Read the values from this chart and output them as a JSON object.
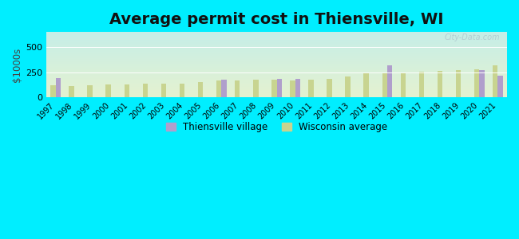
{
  "title": "Average permit cost in Thiensville, WI",
  "ylabel": "$1000s",
  "years": [
    1997,
    1998,
    1999,
    2000,
    2001,
    2002,
    2003,
    2004,
    2005,
    2006,
    2007,
    2008,
    2009,
    2010,
    2011,
    2012,
    2013,
    2014,
    2015,
    2016,
    2017,
    2018,
    2019,
    2020,
    2021
  ],
  "thiensville": [
    195,
    null,
    null,
    null,
    null,
    null,
    null,
    null,
    null,
    175,
    null,
    null,
    185,
    180,
    null,
    null,
    null,
    null,
    320,
    null,
    null,
    null,
    null,
    270,
    215
  ],
  "wisconsin": [
    120,
    115,
    120,
    130,
    125,
    135,
    135,
    140,
    155,
    165,
    165,
    175,
    175,
    170,
    175,
    180,
    210,
    235,
    240,
    250,
    255,
    260,
    270,
    275,
    320
  ],
  "thiensville_color": "#b09fcc",
  "wisconsin_color": "#c8d490",
  "outer_bg": "#00eeff",
  "plot_bg_top": "#c5eee8",
  "plot_bg_bottom": "#e5f0d0",
  "ylim": [
    0,
    650
  ],
  "yticks": [
    0,
    250,
    500
  ],
  "title_fontsize": 14,
  "bar_width": 0.28,
  "legend_thiensville": "Thiensville village",
  "legend_wisconsin": "Wisconsin average"
}
